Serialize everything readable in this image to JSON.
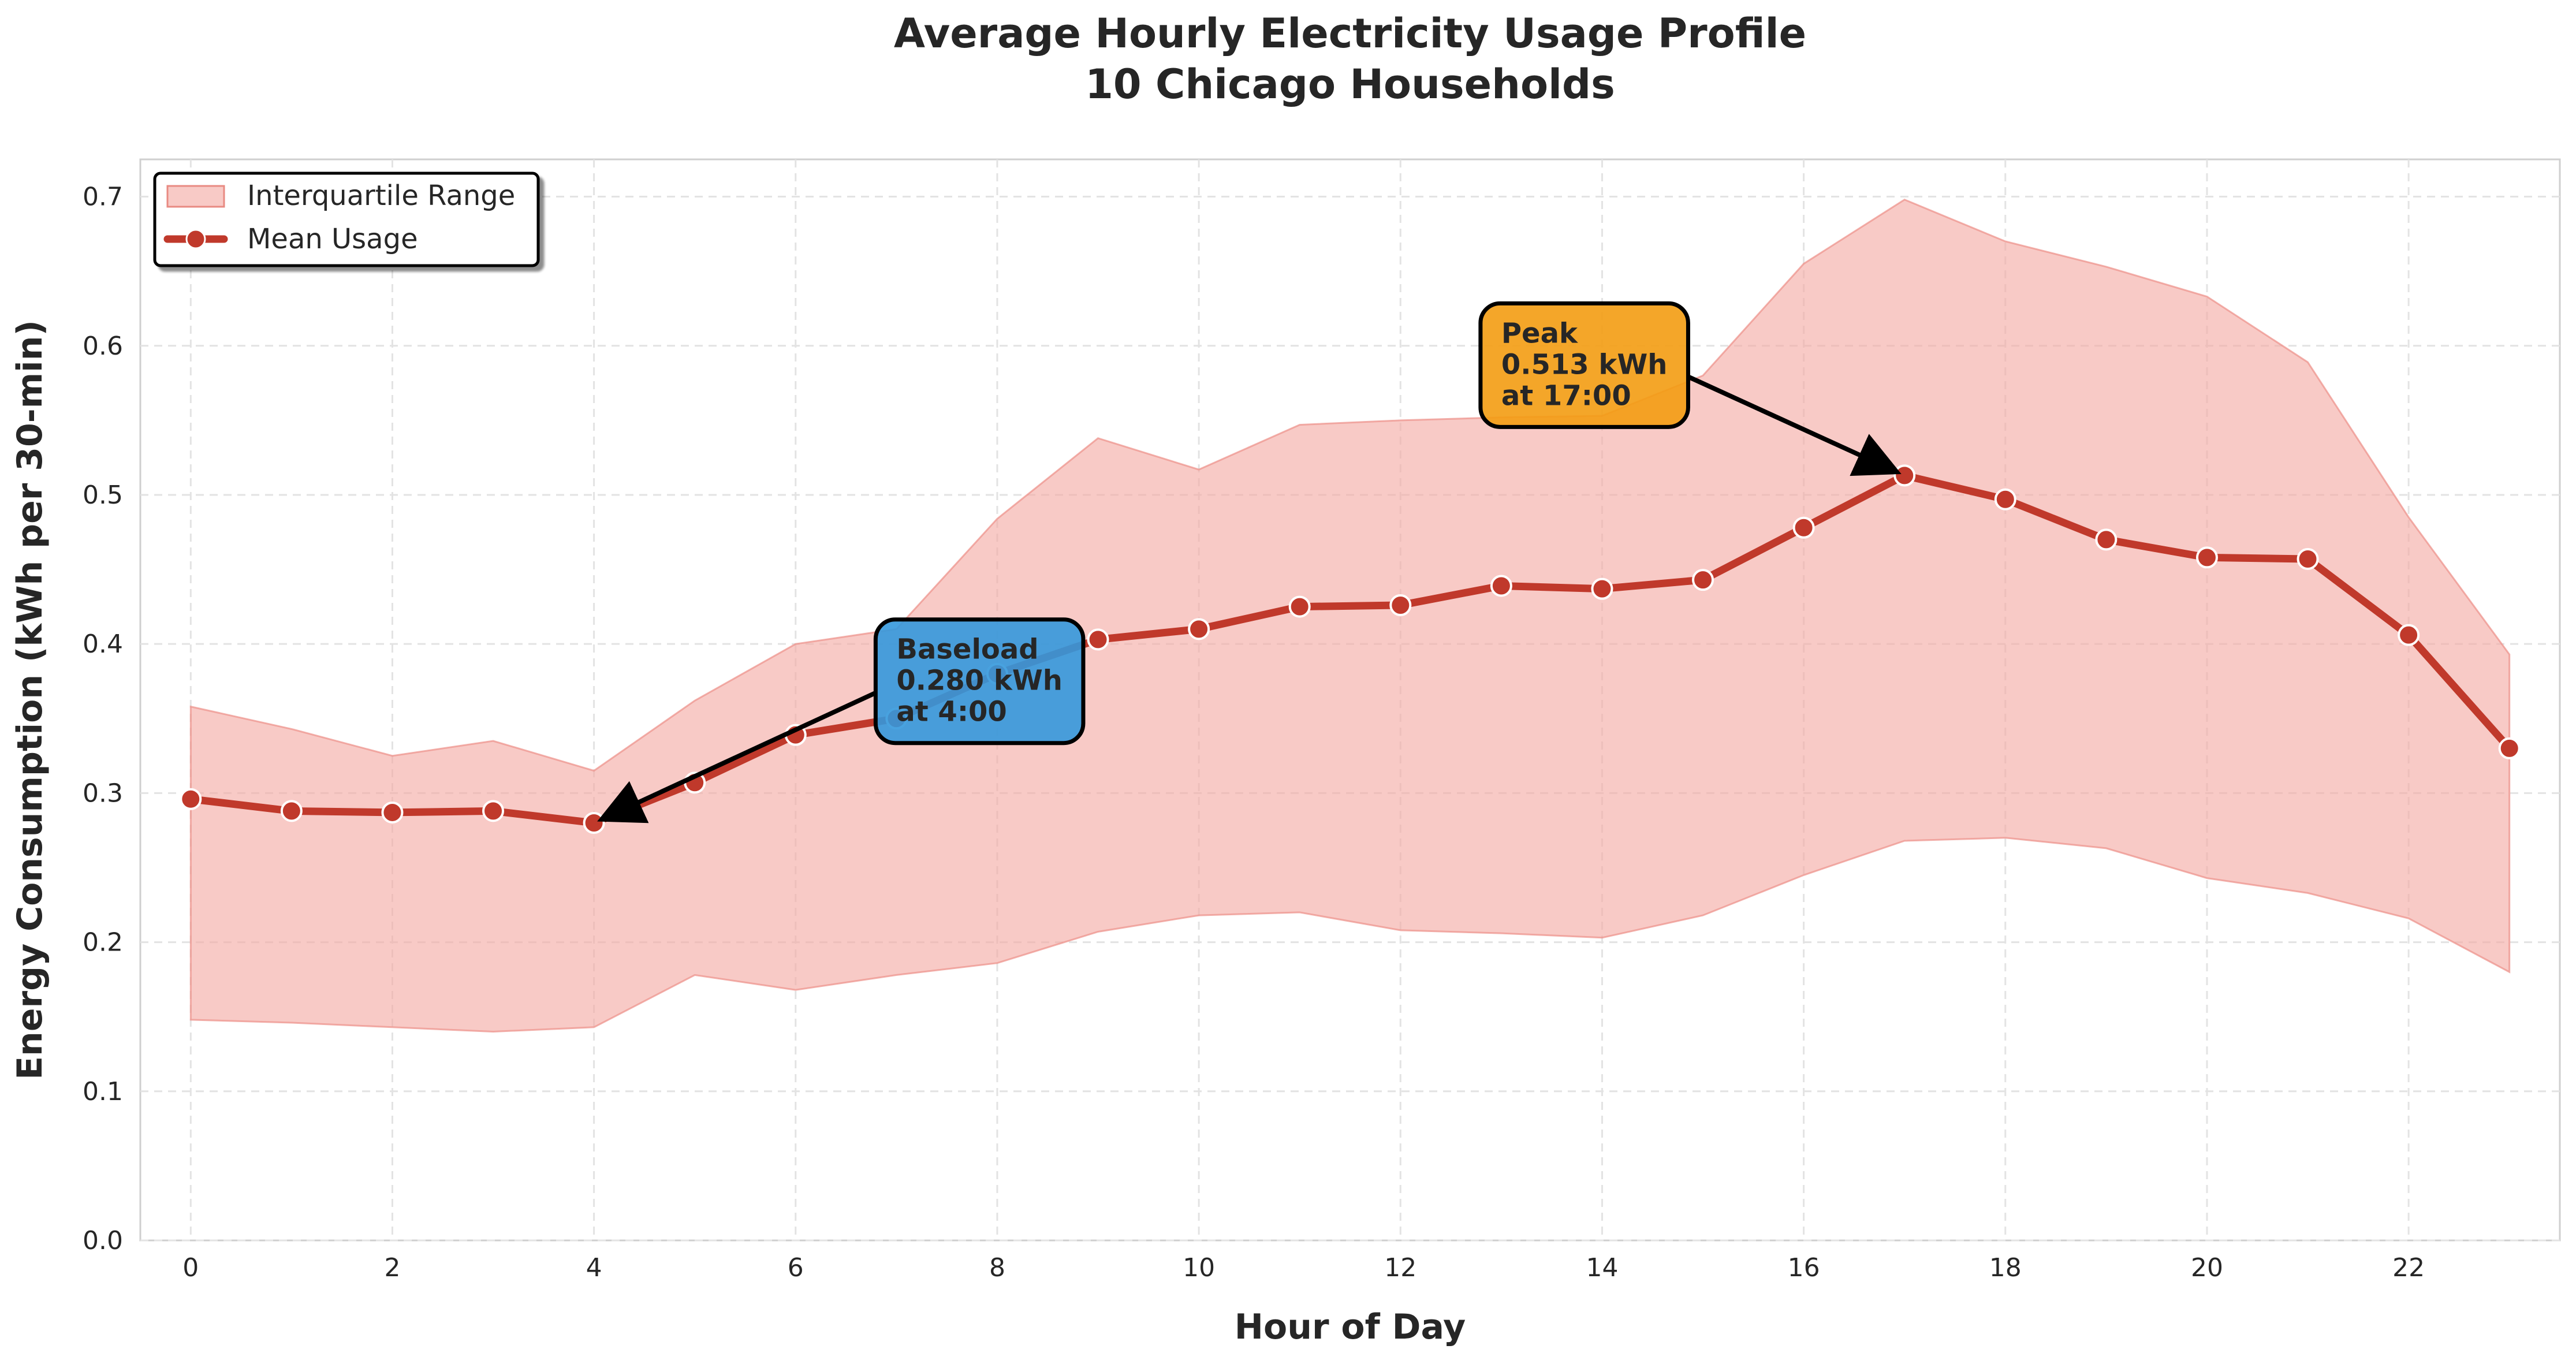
{
  "chart_data": {
    "type": "line",
    "title": "Average Hourly Electricity Usage Profile",
    "subtitle": "10 Chicago Households",
    "xlabel": "Hour of Day",
    "ylabel": "Energy Consumption (kWh per 30-min)",
    "xlim": [
      -0.5,
      23.5
    ],
    "ylim": [
      0.0,
      0.725
    ],
    "x_ticks": [
      0,
      2,
      4,
      6,
      8,
      10,
      12,
      14,
      16,
      18,
      20,
      22
    ],
    "y_ticks": [
      0.0,
      0.1,
      0.2,
      0.3,
      0.4,
      0.5,
      0.6,
      0.7
    ],
    "grid": true,
    "legend_placement": "top-left",
    "x": [
      0,
      1,
      2,
      3,
      4,
      5,
      6,
      7,
      8,
      9,
      10,
      11,
      12,
      13,
      14,
      15,
      16,
      17,
      18,
      19,
      20,
      21,
      22,
      23
    ],
    "series": [
      {
        "name": "Mean Usage",
        "kind": "line",
        "color": "#c0392b",
        "values": [
          0.296,
          0.288,
          0.287,
          0.288,
          0.28,
          0.307,
          0.339,
          0.35,
          0.38,
          0.403,
          0.41,
          0.425,
          0.426,
          0.439,
          0.437,
          0.443,
          0.478,
          0.513,
          0.497,
          0.47,
          0.458,
          0.457,
          0.406,
          0.33
        ]
      },
      {
        "name": "Interquartile Range",
        "kind": "band",
        "color": "#f4a6a0",
        "lower": [
          0.148,
          0.146,
          0.143,
          0.14,
          0.143,
          0.178,
          0.168,
          0.178,
          0.186,
          0.207,
          0.218,
          0.22,
          0.208,
          0.206,
          0.203,
          0.218,
          0.245,
          0.268,
          0.27,
          0.263,
          0.243,
          0.233,
          0.216,
          0.18
        ],
        "upper": [
          0.358,
          0.343,
          0.325,
          0.335,
          0.315,
          0.362,
          0.4,
          0.41,
          0.484,
          0.538,
          0.517,
          0.547,
          0.55,
          0.552,
          0.553,
          0.58,
          0.655,
          0.698,
          0.67,
          0.653,
          0.633,
          0.589,
          0.485,
          0.393
        ]
      }
    ],
    "annotations": [
      {
        "id": "baseload",
        "lines": [
          "Baseload",
          "0.280 kWh",
          "at 4:00"
        ],
        "point": {
          "x": 4,
          "y": 0.28
        },
        "box_anchor": {
          "x": 7.0,
          "y": 0.375
        },
        "box_color": "#3498db"
      },
      {
        "id": "peak",
        "lines": [
          "Peak",
          "0.513 kWh",
          "at 17:00"
        ],
        "point": {
          "x": 17,
          "y": 0.513
        },
        "box_anchor": {
          "x": 13.0,
          "y": 0.587
        },
        "box_color": "#f39c12"
      }
    ]
  }
}
